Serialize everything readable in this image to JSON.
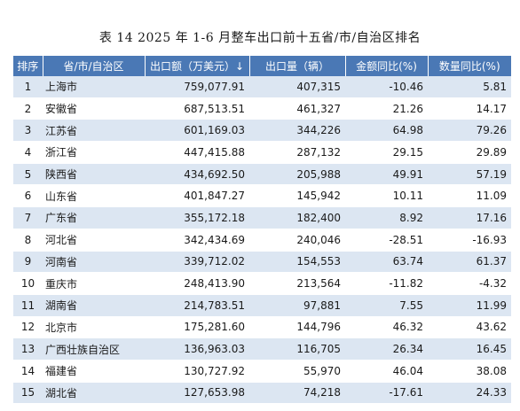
{
  "title": "表 14   2025 年 1-6 月整车出口前十五省/市/自治区排名",
  "headers": [
    "排序",
    "省/市/自治区",
    "出口额（万美元）↓",
    "出口量（辆）",
    "金额同比(%)",
    "数量同比(%)"
  ],
  "rows": [
    {
      "rank": "1",
      "name": "上海市",
      "value": "759,077.91",
      "volume": "407,315",
      "value_yoy": "-10.46",
      "volume_yoy": "5.81"
    },
    {
      "rank": "2",
      "name": "安徽省",
      "value": "687,513.51",
      "volume": "461,327",
      "value_yoy": "21.26",
      "volume_yoy": "14.17"
    },
    {
      "rank": "3",
      "name": "江苏省",
      "value": "601,169.03",
      "volume": "344,226",
      "value_yoy": "64.98",
      "volume_yoy": "79.26"
    },
    {
      "rank": "4",
      "name": "浙江省",
      "value": "447,415.88",
      "volume": "287,132",
      "value_yoy": "29.15",
      "volume_yoy": "29.89"
    },
    {
      "rank": "5",
      "name": "陕西省",
      "value": "434,692.50",
      "volume": "205,988",
      "value_yoy": "49.91",
      "volume_yoy": "57.19"
    },
    {
      "rank": "6",
      "name": "山东省",
      "value": "401,847.27",
      "volume": "145,942",
      "value_yoy": "10.11",
      "volume_yoy": "11.09"
    },
    {
      "rank": "7",
      "name": "广东省",
      "value": "355,172.18",
      "volume": "182,400",
      "value_yoy": "8.92",
      "volume_yoy": "17.16"
    },
    {
      "rank": "8",
      "name": "河北省",
      "value": "342,434.69",
      "volume": "240,046",
      "value_yoy": "-28.51",
      "volume_yoy": "-16.93"
    },
    {
      "rank": "9",
      "name": "河南省",
      "value": "339,712.02",
      "volume": "154,553",
      "value_yoy": "63.74",
      "volume_yoy": "61.37"
    },
    {
      "rank": "10",
      "name": "重庆市",
      "value": "248,413.90",
      "volume": "213,564",
      "value_yoy": "-11.82",
      "volume_yoy": "-4.32"
    },
    {
      "rank": "11",
      "name": "湖南省",
      "value": "214,783.51",
      "volume": "97,881",
      "value_yoy": "7.55",
      "volume_yoy": "11.99"
    },
    {
      "rank": "12",
      "name": "北京市",
      "value": "175,281.60",
      "volume": "144,796",
      "value_yoy": "46.32",
      "volume_yoy": "43.62"
    },
    {
      "rank": "13",
      "name": "广西壮族自治区",
      "value": "136,963.03",
      "volume": "116,705",
      "value_yoy": "26.34",
      "volume_yoy": "16.45"
    },
    {
      "rank": "14",
      "name": "福建省",
      "value": "130,727.92",
      "volume": "55,970",
      "value_yoy": "46.04",
      "volume_yoy": "38.08"
    },
    {
      "rank": "15",
      "name": "湖北省",
      "value": "127,653.98",
      "volume": "74,218",
      "value_yoy": "-17.61",
      "volume_yoy": "24.33"
    }
  ]
}
